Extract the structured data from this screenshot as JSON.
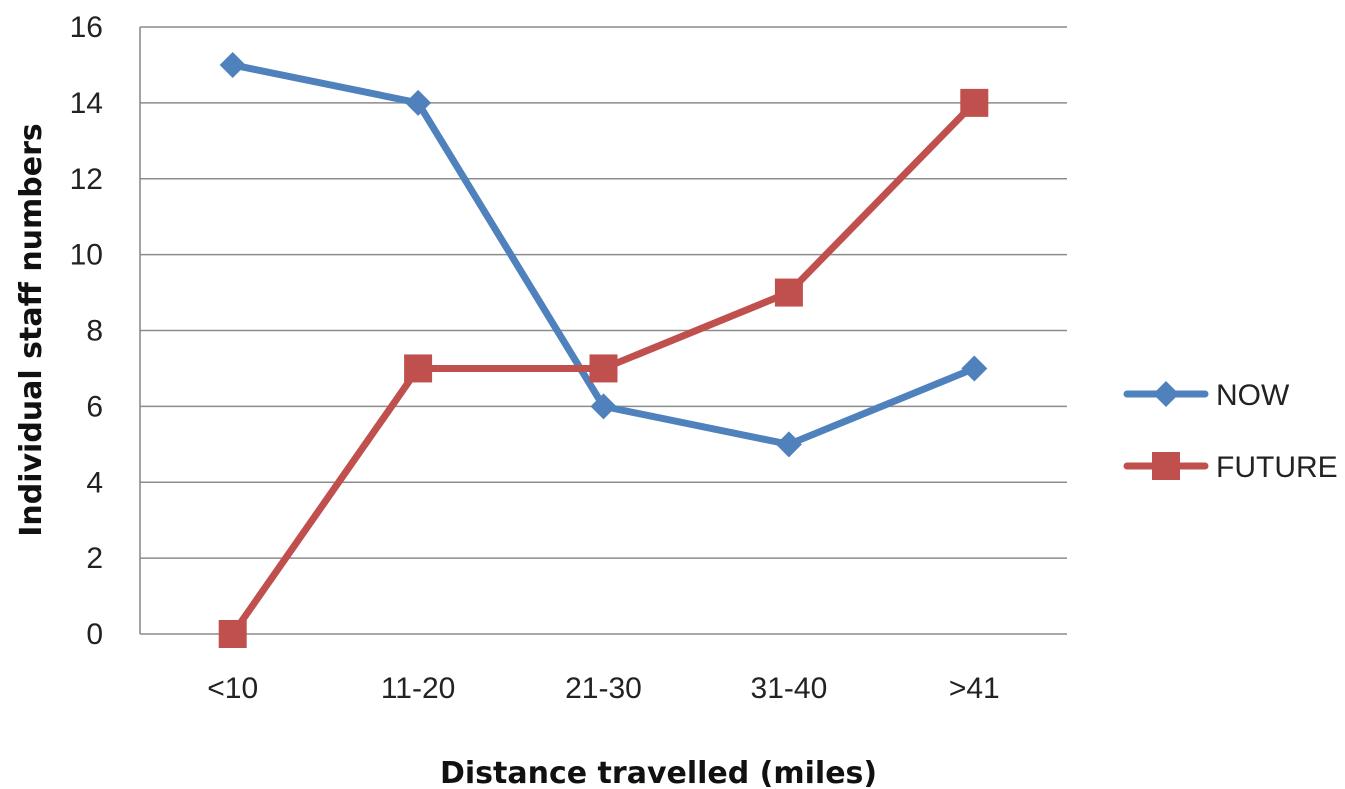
{
  "chart_data": {
    "type": "line",
    "title": "",
    "xlabel": "Distance travelled (miles)",
    "ylabel": "Individual staff numbers",
    "categories": [
      "<10",
      "11-20",
      "21-30",
      "31-40",
      ">41"
    ],
    "ylim": [
      0,
      16
    ],
    "yticks": [
      0,
      2,
      4,
      6,
      8,
      10,
      12,
      14,
      16
    ],
    "ytick_labels": [
      "0",
      "2",
      "4",
      "6",
      "8",
      "10",
      "12",
      "14",
      "16"
    ],
    "grid": true,
    "legend_position": "right",
    "series": [
      {
        "name": "NOW",
        "values": [
          15,
          14,
          6,
          5,
          7
        ],
        "color": "#4f81bd",
        "marker": "diamond"
      },
      {
        "name": "FUTURE",
        "values": [
          0,
          7,
          7,
          9,
          14
        ],
        "color": "#c0504d",
        "marker": "square"
      }
    ]
  }
}
